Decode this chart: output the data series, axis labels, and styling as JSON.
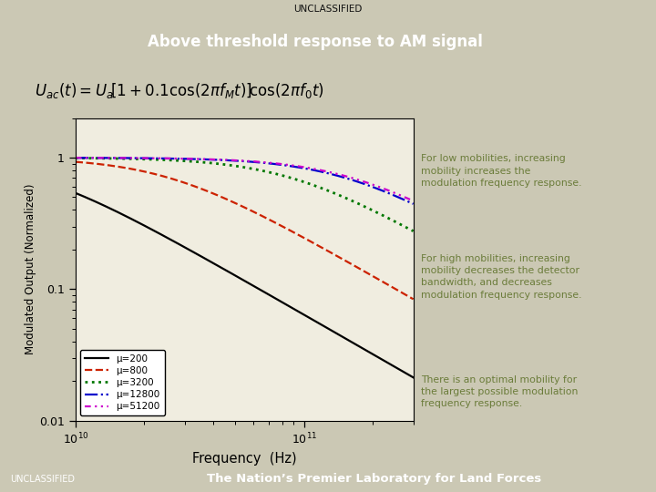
{
  "title": "Above threshold response to AM signal",
  "unclassified_text": "UNCLASSIFIED",
  "footer_text": "The Nation’s Premier Laboratory for Land Forces",
  "xlabel": "Frequency  (Hz)",
  "ylabel": "Modulated Output (Normalized)",
  "bg_color": "#cbc8b4",
  "plot_bg": "#f0ede0",
  "header_color": "#1c1c1c",
  "footer_color": "#2a2a2a",
  "xmin": 10000000000.0,
  "xmax": 300000000000.0,
  "ymin": 0.01,
  "ymax": 2.0,
  "annotations": [
    "For low mobilities, increasing\nmobility increases the\nmodulation frequency response.",
    "For high mobilities, increasing\nmobility decreases the detector\nbandwidth, and decreases\nmodulation frequency response.",
    "There is an optimal mobility for\nthe largest possible modulation\nfrequency response."
  ],
  "annotation_color": "#6b7c3a",
  "series": [
    {
      "mu": 200,
      "color": "#000000",
      "ls": "solid",
      "lw": 1.6,
      "label": "μ=200"
    },
    {
      "mu": 800,
      "color": "#cc2200",
      "ls": "dashed",
      "lw": 1.6,
      "label": "μ=800"
    },
    {
      "mu": 3200,
      "color": "#007700",
      "ls": "dotted",
      "lw": 2.0,
      "label": "μ=3200"
    },
    {
      "mu": 12800,
      "color": "#0000cc",
      "ls": "dashdot",
      "lw": 1.6,
      "label": "μ=12800"
    },
    {
      "mu": 51200,
      "color": "#cc00cc",
      "ls": "dashdotdot",
      "lw": 1.6,
      "label": "μ=51200"
    }
  ],
  "fc_scale": 32000000.0
}
